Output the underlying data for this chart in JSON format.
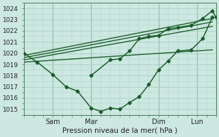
{
  "title": "Pression niveau de la mer( hPa )",
  "bg_color": "#cce8e0",
  "grid_color": "#a8cfc6",
  "line_color": "#1a5c28",
  "ylim": [
    1014.5,
    1024.5
  ],
  "yticks": [
    1015,
    1016,
    1017,
    1018,
    1019,
    1020,
    1021,
    1022,
    1023,
    1024
  ],
  "xlim": [
    0,
    10
  ],
  "vlines_x": [
    1.5,
    3.5,
    7.0,
    9.0
  ],
  "xtick_pos": [
    0.0,
    1.5,
    3.5,
    7.0,
    9.0
  ],
  "xtick_labels": [
    "",
    "Sam",
    "Mar",
    "Dim",
    "Lun"
  ],
  "curved_line": {
    "x": [
      0.0,
      0.7,
      1.5,
      2.2,
      2.8,
      3.5,
      4.0,
      4.5,
      5.0,
      5.5,
      6.0,
      6.5,
      7.0,
      7.5,
      8.0,
      8.7,
      9.3,
      9.8
    ],
    "y": [
      1020.0,
      1019.2,
      1018.1,
      1017.0,
      1016.6,
      1015.1,
      1014.8,
      1015.1,
      1015.0,
      1015.6,
      1016.1,
      1017.2,
      1018.5,
      1019.3,
      1020.2,
      1020.3,
      1021.3,
      1023.2
    ]
  },
  "curved_line2": {
    "x": [
      3.5,
      4.5,
      5.0,
      5.5,
      6.0,
      6.5,
      7.0,
      7.5,
      8.0,
      8.7,
      9.3,
      9.8,
      10.0
    ],
    "y": [
      1018.0,
      1019.4,
      1019.5,
      1020.2,
      1021.3,
      1021.5,
      1021.6,
      1022.2,
      1022.3,
      1022.5,
      1023.1,
      1023.8,
      1023.2
    ]
  },
  "straight_lines": [
    {
      "x": [
        0.0,
        9.8
      ],
      "y": [
        1019.8,
        1023.1
      ]
    },
    {
      "x": [
        0.0,
        9.8
      ],
      "y": [
        1019.6,
        1022.8
      ]
    },
    {
      "x": [
        0.0,
        9.8
      ],
      "y": [
        1019.4,
        1022.4
      ]
    },
    {
      "x": [
        0.0,
        9.8
      ],
      "y": [
        1019.2,
        1020.3
      ]
    }
  ]
}
